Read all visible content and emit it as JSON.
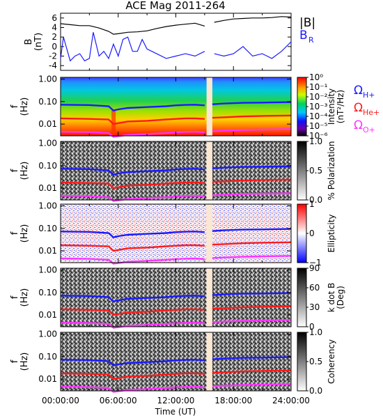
{
  "chart_data": {
    "type": "multi-panel spectrogram",
    "title": "ACE Mag 2011-264",
    "xlabel": "Time (UT)",
    "x_ticks": [
      "00:00:00",
      "06:00:00",
      "12:00:00",
      "18:00:00",
      "24:00:00"
    ],
    "xlim_hours": [
      0,
      24
    ],
    "data_gap_hours": [
      15.2,
      15.8
    ],
    "colors": {
      "B": "#000000",
      "BR": "#1a1aff",
      "H": "#1a1aff",
      "He": "#ff1a1a",
      "O": "#ff33ff",
      "gap": "#fae8d2"
    },
    "top_panel": {
      "ylabel": "B",
      "yunit": "(nT)",
      "ylim": [
        -5,
        7
      ],
      "y_ticks": [
        "6",
        "4",
        "2",
        "0",
        "-2",
        "-4"
      ],
      "legend": {
        "B": "|B|",
        "BR": "B",
        "BR_sub": "R"
      },
      "series": [
        {
          "name": "|B|",
          "x": [
            0,
            1,
            2,
            3,
            4,
            5,
            5.5,
            6,
            7,
            8,
            9,
            10,
            11,
            12,
            13,
            14,
            15,
            16,
            17,
            18,
            19,
            20,
            21,
            22,
            23,
            24
          ],
          "values": [
            4.8,
            4.6,
            4.4,
            4.4,
            3.9,
            3.2,
            2.6,
            2.7,
            3.0,
            3.1,
            3.3,
            3.8,
            4.2,
            4.5,
            4.7,
            4.9,
            4.3,
            5.1,
            5.5,
            5.8,
            5.9,
            6.0,
            6.0,
            6.1,
            6.3,
            6.2
          ]
        },
        {
          "name": "BR",
          "x": [
            0,
            0.3,
            1,
            1.5,
            2,
            2.5,
            3,
            3.4,
            4,
            4.5,
            5,
            5.5,
            6,
            6.5,
            7,
            7.5,
            8,
            8.5,
            9,
            10,
            11,
            12,
            13,
            14,
            15,
            16,
            17,
            18,
            19,
            20,
            21,
            22,
            23,
            24
          ],
          "values": [
            -2.5,
            2.0,
            -3.0,
            -2.0,
            -1.5,
            -3.0,
            -2.5,
            3.0,
            -2.0,
            -1.0,
            -2.5,
            0.5,
            -2.0,
            1.5,
            2.0,
            -1.0,
            -1.0,
            1.5,
            -0.5,
            -1.5,
            -2.5,
            -2.0,
            -1.5,
            -2.0,
            -1.0,
            -1.5,
            -2.0,
            -1.5,
            0.0,
            -2.0,
            -1.5,
            -2.5,
            -1.0,
            1.0
          ]
        }
      ]
    },
    "spectrogram_panels": [
      {
        "name": "Intensity",
        "colorbar_label": "Intensity",
        "colorbar_unit": "(nT²/Hz)",
        "colorbar_ticks": [
          "10⁰",
          "10⁻¹",
          "10⁻²",
          "10⁻³",
          "10⁻⁴",
          "10⁻⁵",
          "10⁻⁶"
        ],
        "colorscale": "rainbow",
        "legend": [
          "Ω",
          "H+",
          "Ω",
          "He+",
          "Ω",
          "O+"
        ]
      },
      {
        "name": "% Polarization",
        "colorbar_label": "% Polarization",
        "colorbar_unit": "",
        "colorbar_ticks": [
          "1.0",
          "0.5",
          "0.0"
        ],
        "colorscale": "gray"
      },
      {
        "name": "Ellipticity",
        "colorbar_label": "Ellipticity",
        "colorbar_unit": "",
        "colorbar_ticks": [
          "1",
          "0",
          "−1"
        ],
        "colorscale": "bwr"
      },
      {
        "name": "k dot B",
        "colorbar_label": "k dot B",
        "colorbar_unit": "(Deg)",
        "colorbar_ticks": [
          "90",
          "60",
          "30",
          "0"
        ],
        "colorscale": "gray"
      },
      {
        "name": "Coherency",
        "colorbar_label": "Coherency",
        "colorbar_unit": "",
        "colorbar_ticks": [
          "1.0",
          "0.5",
          "0.0"
        ],
        "colorscale": "gray"
      }
    ],
    "spec_ylabel": "f",
    "spec_yunit": "(Hz)",
    "spec_ylim": [
      0.003,
      1.2
    ],
    "spec_y_ticks": [
      "1.00",
      "0.10",
      "0.01"
    ],
    "gyrofrequency_lines": [
      {
        "name": "ΩH+",
        "x": [
          0,
          3,
          5,
          5.5,
          6,
          7,
          9,
          11,
          12,
          13,
          14,
          15,
          15.8,
          17,
          19,
          21,
          24
        ],
        "values": [
          0.073,
          0.07,
          0.062,
          0.04,
          0.045,
          0.052,
          0.057,
          0.062,
          0.068,
          0.071,
          0.073,
          0.068,
          0.076,
          0.082,
          0.088,
          0.09,
          0.095
        ]
      },
      {
        "name": "ΩHe+",
        "x": [
          0,
          3,
          5,
          5.5,
          6,
          7,
          9,
          11,
          12,
          13,
          14,
          15,
          15.8,
          17,
          19,
          21,
          24
        ],
        "values": [
          0.018,
          0.017,
          0.016,
          0.01,
          0.011,
          0.013,
          0.014,
          0.016,
          0.017,
          0.018,
          0.018,
          0.017,
          0.019,
          0.02,
          0.022,
          0.023,
          0.024
        ]
      },
      {
        "name": "ΩO+",
        "x": [
          0,
          3,
          5,
          5.5,
          6,
          7,
          9,
          11,
          12,
          13,
          14,
          15,
          15.8,
          17,
          19,
          21,
          24
        ],
        "values": [
          0.0046,
          0.0044,
          0.004,
          0.0027,
          0.0029,
          0.0033,
          0.0036,
          0.004,
          0.0043,
          0.0045,
          0.0046,
          0.0043,
          0.0048,
          0.0051,
          0.0055,
          0.0057,
          0.006
        ]
      }
    ]
  }
}
